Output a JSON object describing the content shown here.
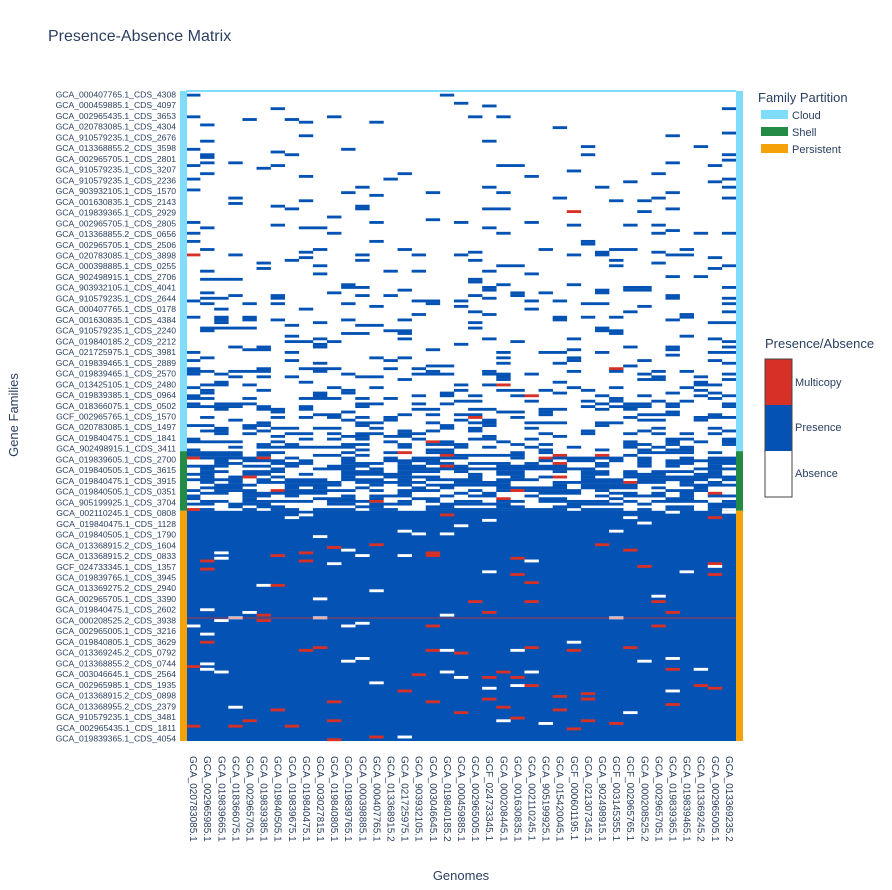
{
  "chart_data": {
    "type": "heatmap",
    "title": "Presence-Absence Matrix",
    "xlabel": "Genomes",
    "ylabel": "Gene Families",
    "x_tick_labels": [
      "GCA_020783085.1",
      "GCA_002965985.1",
      "GCA_019839665.1",
      "GCA_018366075.1",
      "GCA_002965705.1",
      "GCA_019839385.1",
      "GCA_019840505.1",
      "GCA_019839675.1",
      "GCA_019840475.1",
      "GCA_003027815.1",
      "GCA_019840805.1",
      "GCA_019839765.1",
      "GCA_000398885.1",
      "GCA_000407765.1",
      "GCA_013368915.2",
      "GCA_021725975.1",
      "GCA_903932105.1",
      "GCA_003046645.1",
      "GCA_019840185.2",
      "GCA_000459885.1",
      "GCA_002965005.1",
      "GCF_024733345.1",
      "GCA_000208445.1",
      "GCA_001630835.1",
      "GCA_002110245.1",
      "GCA_905199925.1",
      "GCA_015420045.1",
      "GCF_000601195.1",
      "GCA_021307345.1",
      "GCA_902498915.1",
      "GCF_003145355.1",
      "GCF_002965765.1",
      "GCA_000208525.2",
      "GCA_002965705.1",
      "GCA_019839365.1",
      "GCA_019839465.1",
      "GCA_013369245.2",
      "GCA_002965005.1",
      "GCA_013369235.2"
    ],
    "y_tick_labels": [
      "GCA_000407765.1_CDS_4308",
      "GCA_000459885.1_CDS_4097",
      "GCA_002965435.1_CDS_3653",
      "GCA_020783085.1_CDS_4304",
      "GCA_910579235.1_CDS_2676",
      "GCA_013368855.2_CDS_3598",
      "GCA_002965705.1_CDS_2801",
      "GCA_910579235.1_CDS_3207",
      "GCA_910579235.1_CDS_2236",
      "GCA_903932105.1_CDS_1570",
      "GCA_001630835.1_CDS_2143",
      "GCA_019839365.1_CDS_2929",
      "GCA_002965705.1_CDS_2805",
      "GCA_013368855.2_CDS_0656",
      "GCA_002965705.1_CDS_2506",
      "GCA_020783085.1_CDS_3898",
      "GCA_000398885.1_CDS_0255",
      "GCA_902498915.1_CDS_2706",
      "GCA_903932105.1_CDS_4041",
      "GCA_910579235.1_CDS_2644",
      "GCA_000407765.1_CDS_0178",
      "GCA_001630835.1_CDS_4384",
      "GCA_910579235.1_CDS_2240",
      "GCA_019840185.2_CDS_2212",
      "GCA_021725975.1_CDS_3981",
      "GCA_019839465.1_CDS_2889",
      "GCA_019839465.1_CDS_2570",
      "GCA_013425105.1_CDS_2480",
      "GCA_019839385.1_CDS_0964",
      "GCA_018366075.1_CDS_0502",
      "GCF_002965765.1_CDS_1570",
      "GCA_020783085.1_CDS_1497",
      "GCA_019840475.1_CDS_1841",
      "GCA_902498915.1_CDS_3411",
      "GCA_019839605.1_CDS_2700",
      "GCA_019840505.1_CDS_3615",
      "GCA_019840475.1_CDS_3915",
      "GCA_019840505.1_CDS_0351",
      "GCA_905199925.1_CDS_3704",
      "GCA_002110245.1_CDS_0808",
      "GCA_019840475.1_CDS_1128",
      "GCA_019840505.1_CDS_1790",
      "GCA_013368915.2_CDS_1604",
      "GCA_013368915.2_CDS_0833",
      "GCF_024733345.1_CDS_1357",
      "GCA_019839765.1_CDS_3945",
      "GCA_013369275.2_CDS_2940",
      "GCA_002965705.1_CDS_3390",
      "GCA_019840475.1_CDS_2602",
      "GCA_000208525.2_CDS_3938",
      "GCA_002965005.1_CDS_3216",
      "GCA_019840805.1_CDS_3629",
      "GCA_013369245.2_CDS_0792",
      "GCA_013368855.2_CDS_0744",
      "GCA_003046645.1_CDS_2564",
      "GCA_002965985.1_CDS_1935",
      "GCA_013368915.2_CDS_0898",
      "GCA_013368955.2_CDS_2379",
      "GCA_910579235.1_CDS_3481",
      "GCA_002965435.1_CDS_1811",
      "GCA_019839365.1_CDS_4054"
    ],
    "family_partition": {
      "title": "Family Partition",
      "categories": [
        {
          "name": "Cloud",
          "color": "#7fdcfa",
          "fraction_of_rows": 0.553
        },
        {
          "name": "Shell",
          "color": "#238b45",
          "fraction_of_rows": 0.09
        },
        {
          "name": "Persistent",
          "color": "#f5a20a",
          "fraction_of_rows": 0.357
        }
      ]
    },
    "presence_absence_legend": {
      "title": "Presence/Absence",
      "categories": [
        {
          "name": "Multicopy",
          "color": "#d73027"
        },
        {
          "name": "Presence",
          "color": "#0453b4"
        },
        {
          "name": "Absence",
          "color": "#ffffff"
        }
      ]
    },
    "matrix_summary": {
      "cloud": "mostly absence with sparse presence",
      "shell": "mixed presence and absence",
      "persistent": "mostly presence with occasional absence and multicopy"
    }
  }
}
